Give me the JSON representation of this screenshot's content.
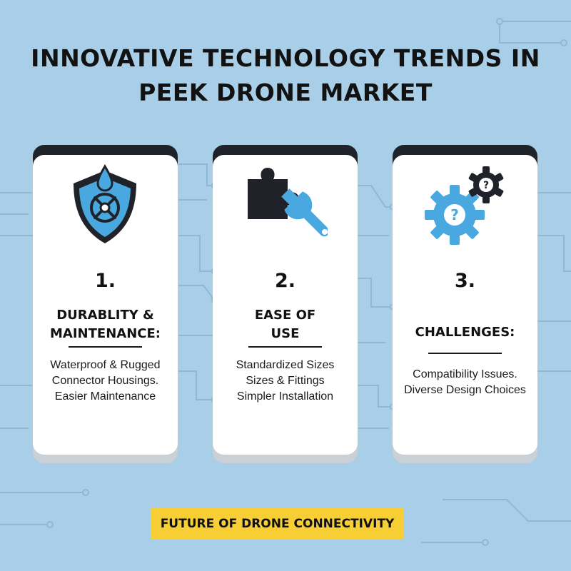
{
  "title": {
    "line1": "INNOVATIVE TECHNOLOGY TRENDS IN",
    "line2": "PEEK DRONE MARKET"
  },
  "cards": [
    {
      "number": "1.",
      "heading_lines": [
        "DURABLITY &",
        "MAINTENANCE:"
      ],
      "desc_lines": [
        "Waterproof & Rugged",
        "Connector Housings.",
        "Easier Maintenance"
      ],
      "icon": "waterproof-shield-icon"
    },
    {
      "number": "2.",
      "heading_lines": [
        "EASE OF",
        "USE"
      ],
      "desc_lines": [
        "Standardized Sizes",
        "Sizes & Fittings",
        "Simpler Installation"
      ],
      "icon": "puzzle-wrench-icon"
    },
    {
      "number": "3.",
      "heading_lines": [
        "CHALLENGES:"
      ],
      "desc_lines": [
        "Compatibility Issues.",
        "Diverse Design Choices"
      ],
      "icon": "question-gears-icon"
    }
  ],
  "footer": {
    "label": "FUTURE OF DRONE CONNECTIVITY"
  },
  "colors": {
    "background": "#a9cfe8",
    "accent_blue": "#4aa8e0",
    "dark": "#1f2329",
    "footer_yellow": "#f7cf35",
    "card": "#ffffff"
  }
}
